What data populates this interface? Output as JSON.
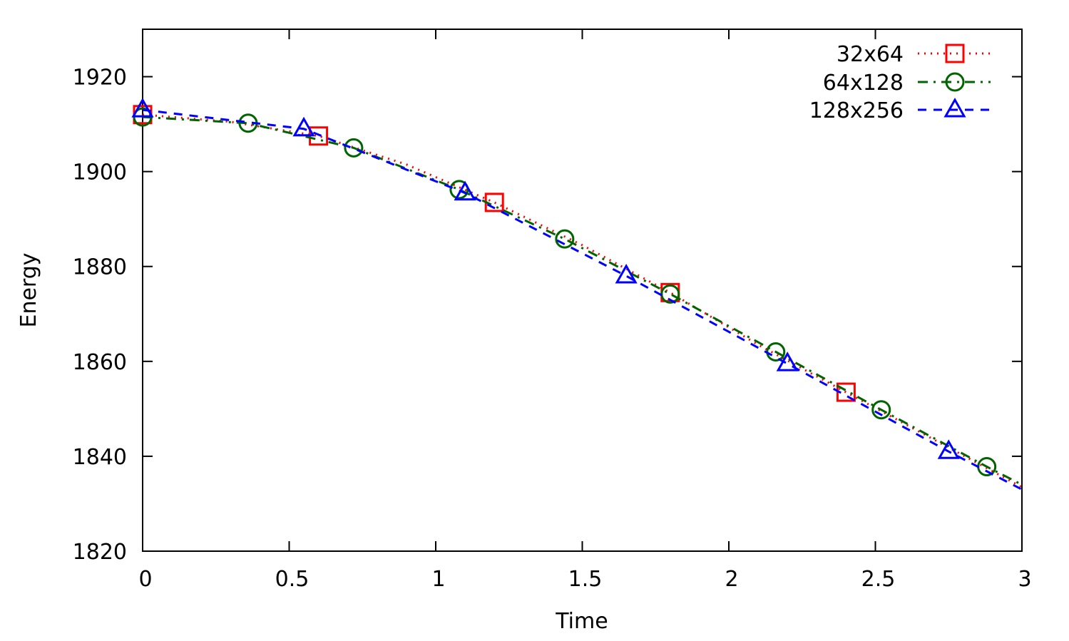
{
  "chart_data": {
    "type": "line",
    "xlabel": "Time",
    "ylabel": "Energy",
    "xlim": [
      0,
      3
    ],
    "ylim": [
      1820,
      1930
    ],
    "xticks": [
      0,
      0.5,
      1,
      1.5,
      2,
      2.5,
      3
    ],
    "xtick_labels": [
      "0",
      "0.5",
      "1",
      "1.5",
      "2",
      "2.5",
      "3"
    ],
    "yticks": [
      1820,
      1840,
      1860,
      1880,
      1900,
      1920
    ],
    "ytick_labels": [
      "1820",
      "1840",
      "1860",
      "1880",
      "1900",
      "1920"
    ],
    "grid": false,
    "legend_position": "top-right",
    "series": [
      {
        "name": "32x64",
        "color": "#ff0000",
        "line_style": "dotted",
        "marker": "square",
        "x": [
          0,
          0.3,
          0.6,
          0.9,
          1.2,
          1.5,
          1.8,
          2.1,
          2.4,
          2.7,
          3.0
        ],
        "y": [
          1912,
          1910.5,
          1907.5,
          1901.5,
          1893.5,
          1884.5,
          1874.5,
          1863.5,
          1853.5,
          1843.5,
          1833.5
        ],
        "marker_x": [
          0,
          0.6,
          1.2,
          1.8,
          2.4
        ],
        "marker_y": [
          1912,
          1907.5,
          1893.5,
          1874.5,
          1853.5
        ]
      },
      {
        "name": "64x128",
        "color": "#006400",
        "line_style": "dash-dot",
        "marker": "circle",
        "x": [
          0,
          0.36,
          0.72,
          1.08,
          1.44,
          1.8,
          2.16,
          2.52,
          2.88,
          3.0
        ],
        "y": [
          1911.5,
          1910.2,
          1905,
          1896.2,
          1885.8,
          1874.2,
          1862,
          1849.8,
          1837.8,
          1834
        ],
        "marker_x": [
          0,
          0.36,
          0.72,
          1.08,
          1.44,
          1.8,
          2.16,
          2.52,
          2.88
        ],
        "marker_y": [
          1911.5,
          1910.2,
          1905,
          1896.2,
          1885.8,
          1874.2,
          1862,
          1849.8,
          1837.8
        ]
      },
      {
        "name": "128x256",
        "color": "#0000ff",
        "line_style": "dashed",
        "marker": "triangle",
        "x": [
          0,
          0.55,
          1.1,
          1.65,
          2.2,
          2.75,
          3.0
        ],
        "y": [
          1913,
          1909,
          1895.5,
          1878,
          1859.5,
          1841,
          1833
        ],
        "marker_x": [
          0,
          0.55,
          1.1,
          1.65,
          2.2,
          2.75
        ],
        "marker_y": [
          1913,
          1909,
          1895.5,
          1878,
          1859.5,
          1841
        ]
      }
    ]
  }
}
